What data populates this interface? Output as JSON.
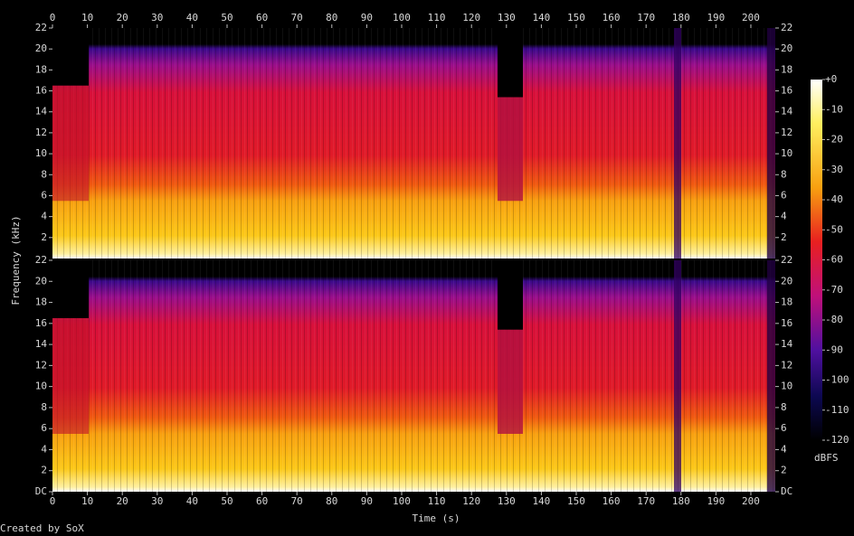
{
  "chart_data": {
    "type": "spectrogram",
    "xlabel": "Time (s)",
    "ylabel": "Frequency (kHz)",
    "xlim": [
      0,
      207
    ],
    "xticks": [
      0,
      10,
      20,
      30,
      40,
      50,
      60,
      70,
      80,
      90,
      100,
      110,
      120,
      130,
      140,
      150,
      160,
      170,
      180,
      190,
      200
    ],
    "ylim": [
      0,
      22
    ],
    "panels": [
      {
        "yticks": [
          2,
          4,
          6,
          8,
          10,
          12,
          14,
          16,
          18,
          20,
          22
        ]
      },
      {
        "yticks": [
          {
            "value": 0,
            "label": "DC"
          },
          2,
          4,
          6,
          8,
          10,
          12,
          14,
          16,
          18,
          20,
          22
        ]
      }
    ],
    "colorbar": {
      "label": "dBFS",
      "lim": [
        -120,
        0
      ],
      "ticks": [
        {
          "value": 0,
          "label": "+0"
        },
        -10,
        -20,
        -30,
        -40,
        -50,
        -60,
        -70,
        -80,
        -90,
        -100,
        -110,
        -120
      ]
    },
    "footer": "Created by SoX"
  }
}
